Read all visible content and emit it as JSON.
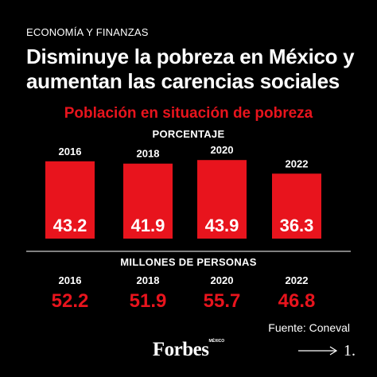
{
  "header": {
    "section_label": "ECONOMÍA Y FINANZAS",
    "headline": "Disminuye la pobreza en México y aumentan las carencias sociales"
  },
  "chart_data": [
    {
      "type": "bar",
      "title": "Población en situación de pobreza",
      "subtitle": "PORCENTAJE",
      "categories": [
        "2016",
        "2018",
        "2020",
        "2022"
      ],
      "values": [
        43.2,
        41.9,
        43.9,
        36.3
      ],
      "value_labels": [
        "43.2",
        "41.9",
        "43.9",
        "36.3"
      ],
      "bar_color": "#e8141d",
      "grid": false
    },
    {
      "type": "table",
      "subtitle": "MILLONES DE PERSONAS",
      "categories": [
        "2016",
        "2018",
        "2020",
        "2022"
      ],
      "values": [
        52.2,
        51.9,
        55.7,
        46.8
      ],
      "value_labels": [
        "52.2",
        "51.9",
        "55.7",
        "46.8"
      ],
      "value_color": "#e8141d"
    }
  ],
  "footer": {
    "source": "Fuente: Coneval",
    "brand": "Forbes",
    "brand_tag": "MÉXICO",
    "page_number": "1."
  },
  "icons": {
    "next": "arrow-right-icon"
  }
}
